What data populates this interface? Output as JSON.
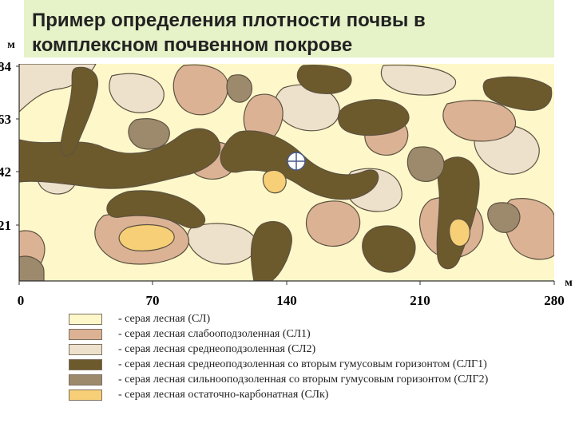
{
  "title": {
    "line1": "Пример определения плотности почвы  в",
    "line2": "комплексном почвенном покрове"
  },
  "map": {
    "y_unit": "м",
    "x_unit": "м",
    "y_ticks": [
      "84",
      "63",
      "42",
      "21"
    ],
    "x_ticks": [
      "0",
      "70",
      "140",
      "210",
      "280"
    ],
    "marker_icon": "crosshair-circle-icon",
    "colors": {
      "sl": "#fdf7c9",
      "sl1": "#dcb295",
      "sl2": "#ede1cc",
      "slg1": "#6d5a2c",
      "slg2": "#9d8a6d",
      "slk": "#f7cf76",
      "outline": "#5c5240"
    }
  },
  "legend": [
    {
      "label": "- серая лесная (СЛ)",
      "color": "#fdf7c9"
    },
    {
      "label": "- серая лесная слабооподзоленная (СЛ1)",
      "color": "#dcb295"
    },
    {
      "label": "- серая лесная среднеоподзоленная (СЛ2)",
      "color": "#ede1cc"
    },
    {
      "label": "- серая лесная среднеоподзоленная со вторым гумусовым горизонтом (СЛГ1)",
      "color": "#6d5a2c"
    },
    {
      "label": "- серая лесная сильнооподзоленная со вторым гумусовым горизонтом (СЛГ2)",
      "color": "#9d8a6d"
    },
    {
      "label": "- серая лесная остаточно-карбонатная (СЛк)",
      "color": "#f7cf76"
    }
  ]
}
